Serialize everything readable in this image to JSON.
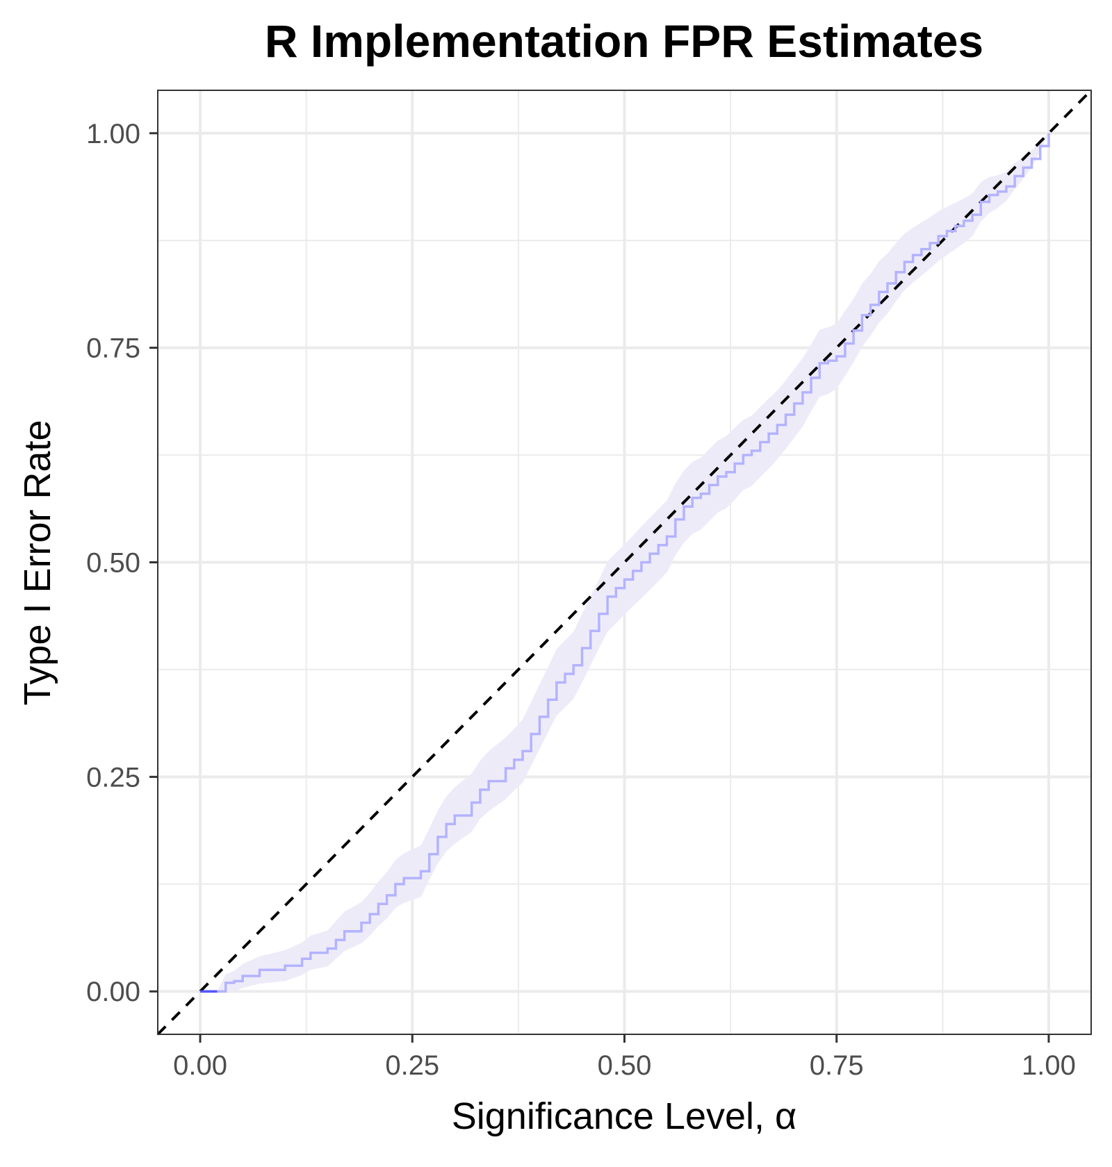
{
  "chart_data": {
    "type": "line",
    "title": "R Implementation FPR Estimates",
    "xlabel": "Significance Level, α",
    "ylabel": "Type I Error Rate",
    "xlim": [
      -0.05,
      1.05
    ],
    "ylim": [
      -0.05,
      1.05
    ],
    "x_ticks": [
      0,
      0.25,
      0.5,
      0.75,
      1
    ],
    "x_tick_labels": [
      "0.00",
      "0.25",
      "0.50",
      "0.75",
      "1.00"
    ],
    "y_ticks": [
      0,
      0.25,
      0.5,
      0.75,
      1
    ],
    "y_tick_labels": [
      "0.00",
      "0.25",
      "0.50",
      "0.75",
      "1.00"
    ],
    "grid": true,
    "legend": "none",
    "colors": {
      "line": "#b3b3ff",
      "band": "#eeebf9",
      "reference": "#000000",
      "low_alpha_segment": "#5555ff",
      "grid": "#ebebeb",
      "panel_border": "#333333"
    },
    "series": [
      {
        "role": "estimate",
        "points": [
          [
            0.0,
            0.0
          ],
          [
            0.02,
            0.0
          ],
          [
            0.03,
            0.01
          ],
          [
            0.04,
            0.012
          ],
          [
            0.05,
            0.018
          ],
          [
            0.07,
            0.025
          ],
          [
            0.1,
            0.03
          ],
          [
            0.12,
            0.038
          ],
          [
            0.13,
            0.045
          ],
          [
            0.15,
            0.05
          ],
          [
            0.16,
            0.06
          ],
          [
            0.17,
            0.07
          ],
          [
            0.19,
            0.08
          ],
          [
            0.2,
            0.09
          ],
          [
            0.21,
            0.102
          ],
          [
            0.22,
            0.112
          ],
          [
            0.23,
            0.125
          ],
          [
            0.24,
            0.132
          ],
          [
            0.26,
            0.14
          ],
          [
            0.27,
            0.16
          ],
          [
            0.28,
            0.18
          ],
          [
            0.29,
            0.195
          ],
          [
            0.3,
            0.205
          ],
          [
            0.32,
            0.22
          ],
          [
            0.33,
            0.235
          ],
          [
            0.34,
            0.245
          ],
          [
            0.36,
            0.26
          ],
          [
            0.37,
            0.27
          ],
          [
            0.38,
            0.28
          ],
          [
            0.39,
            0.3
          ],
          [
            0.4,
            0.32
          ],
          [
            0.41,
            0.34
          ],
          [
            0.42,
            0.36
          ],
          [
            0.43,
            0.37
          ],
          [
            0.44,
            0.38
          ],
          [
            0.45,
            0.4
          ],
          [
            0.46,
            0.42
          ],
          [
            0.47,
            0.44
          ],
          [
            0.48,
            0.46
          ],
          [
            0.49,
            0.47
          ],
          [
            0.5,
            0.48
          ],
          [
            0.51,
            0.49
          ],
          [
            0.52,
            0.5
          ],
          [
            0.53,
            0.51
          ],
          [
            0.54,
            0.52
          ],
          [
            0.55,
            0.53
          ],
          [
            0.56,
            0.55
          ],
          [
            0.57,
            0.565
          ],
          [
            0.58,
            0.575
          ],
          [
            0.59,
            0.58
          ],
          [
            0.6,
            0.59
          ],
          [
            0.61,
            0.6
          ],
          [
            0.62,
            0.605
          ],
          [
            0.63,
            0.615
          ],
          [
            0.64,
            0.625
          ],
          [
            0.65,
            0.63
          ],
          [
            0.66,
            0.64
          ],
          [
            0.67,
            0.65
          ],
          [
            0.68,
            0.66
          ],
          [
            0.69,
            0.672
          ],
          [
            0.7,
            0.685
          ],
          [
            0.71,
            0.698
          ],
          [
            0.72,
            0.715
          ],
          [
            0.73,
            0.732
          ],
          [
            0.74,
            0.735
          ],
          [
            0.75,
            0.74
          ],
          [
            0.76,
            0.755
          ],
          [
            0.77,
            0.77
          ],
          [
            0.78,
            0.788
          ],
          [
            0.79,
            0.8
          ],
          [
            0.8,
            0.815
          ],
          [
            0.81,
            0.825
          ],
          [
            0.82,
            0.838
          ],
          [
            0.83,
            0.85
          ],
          [
            0.84,
            0.858
          ],
          [
            0.85,
            0.865
          ],
          [
            0.86,
            0.872
          ],
          [
            0.87,
            0.88
          ],
          [
            0.88,
            0.886
          ],
          [
            0.89,
            0.892
          ],
          [
            0.9,
            0.898
          ],
          [
            0.91,
            0.905
          ],
          [
            0.92,
            0.92
          ],
          [
            0.93,
            0.928
          ],
          [
            0.94,
            0.932
          ],
          [
            0.95,
            0.938
          ],
          [
            0.96,
            0.95
          ],
          [
            0.97,
            0.96
          ],
          [
            0.98,
            0.97
          ],
          [
            0.99,
            0.985
          ],
          [
            1.0,
            1.0
          ]
        ],
        "band_halfwidth": [
          0.0,
          0.0,
          0.01,
          0.012,
          0.014,
          0.016,
          0.018,
          0.019,
          0.02,
          0.021,
          0.022,
          0.023,
          0.024,
          0.025,
          0.026,
          0.027,
          0.028,
          0.029,
          0.03,
          0.03,
          0.031,
          0.032,
          0.033,
          0.034,
          0.034,
          0.035,
          0.036,
          0.036,
          0.037,
          0.037,
          0.038,
          0.038,
          0.039,
          0.039,
          0.039,
          0.04,
          0.04,
          0.04,
          0.041,
          0.041,
          0.041,
          0.041,
          0.042,
          0.042,
          0.042,
          0.042,
          0.042,
          0.042,
          0.042,
          0.042,
          0.042,
          0.042,
          0.042,
          0.042,
          0.041,
          0.041,
          0.041,
          0.041,
          0.04,
          0.04,
          0.04,
          0.04,
          0.039,
          0.039,
          0.039,
          0.038,
          0.038,
          0.037,
          0.037,
          0.036,
          0.036,
          0.035,
          0.034,
          0.033,
          0.032,
          0.031,
          0.03,
          0.029,
          0.028,
          0.027,
          0.026,
          0.025,
          0.023,
          0.021,
          0.019,
          0.017,
          0.015,
          0.013,
          0.01,
          0.006,
          0.0
        ]
      },
      {
        "role": "reference",
        "points": [
          [
            -0.05,
            -0.05
          ],
          [
            1.05,
            1.05
          ]
        ]
      }
    ]
  }
}
